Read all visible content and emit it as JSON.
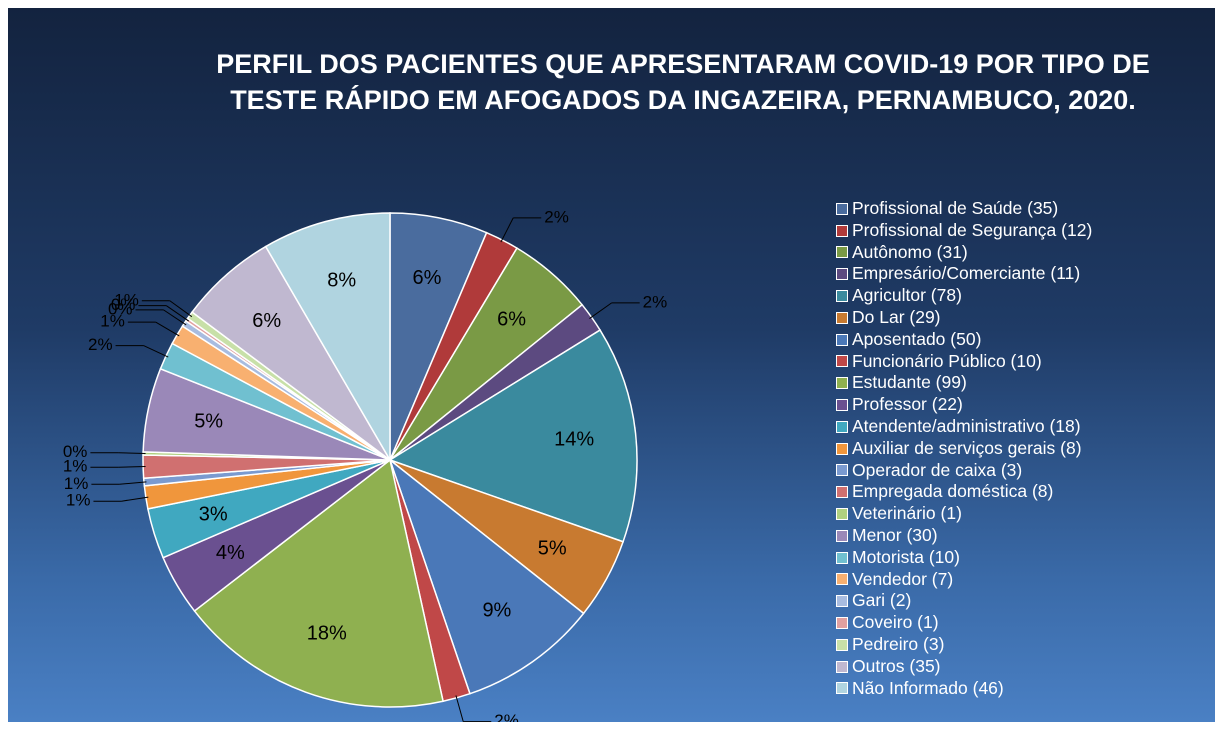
{
  "chart_data": {
    "type": "pie",
    "title": "PERFIL DOS PACIENTES QUE APRESENTARAM COVID-19 POR TIPO DE TESTE RÁPIDO EM AFOGADOS DA INGAZEIRA, PERNAMBUCO, 2020.",
    "categories": [
      "Profissional de Saúde (35)",
      "Profissional de Segurança (12)",
      "Autônomo (31)",
      "Empresário/Comerciante (11)",
      "Agricultor (78)",
      "Do Lar (29)",
      "Aposentado (50)",
      "Funcionário Público (10)",
      "Estudante (99)",
      "Professor (22)",
      "Atendente/administrativo (18)",
      "Auxiliar de serviços gerais (8)",
      "Operador de caixa (3)",
      "Empregada doméstica (8)",
      "Veterinário (1)",
      "Menor (30)",
      "Motorista (10)",
      "Vendedor (7)",
      "Gari (2)",
      "Coveiro (1)",
      "Pedreiro (3)",
      "Outros (35)",
      "Não Informado (46)"
    ],
    "values": [
      6.4,
      2.2,
      5.6,
      2.0,
      14.2,
      5.3,
      9.1,
      1.8,
      18.0,
      4.0,
      3.3,
      1.5,
      0.5,
      1.5,
      0.2,
      5.5,
      1.8,
      1.3,
      0.4,
      0.2,
      0.5,
      6.4,
      8.4
    ],
    "value_labels": [
      "6%",
      "2%",
      "6%",
      "2%",
      "14%",
      "5%",
      "9%",
      "2%",
      "18%",
      "4%",
      "3%",
      "1%",
      "1%",
      "1%",
      "0%",
      "5%",
      "2%",
      "1%",
      "0%",
      "0%",
      "1%",
      "6%",
      "8%"
    ],
    "colors": [
      "#4a6c9e",
      "#b03a3a",
      "#7a9a45",
      "#5c4a80",
      "#3a8a9e",
      "#c87a30",
      "#4a78b8",
      "#c04848",
      "#8fb050",
      "#6a5090",
      "#40a8c0",
      "#f0963c",
      "#7a9ad0",
      "#d07070",
      "#b0d080",
      "#9a88b8",
      "#70c0d0",
      "#f8b070",
      "#a8bce0",
      "#e0a0a0",
      "#c8e0a8",
      "#c0b8d0",
      "#b0d4e0"
    ],
    "legend": "right"
  }
}
